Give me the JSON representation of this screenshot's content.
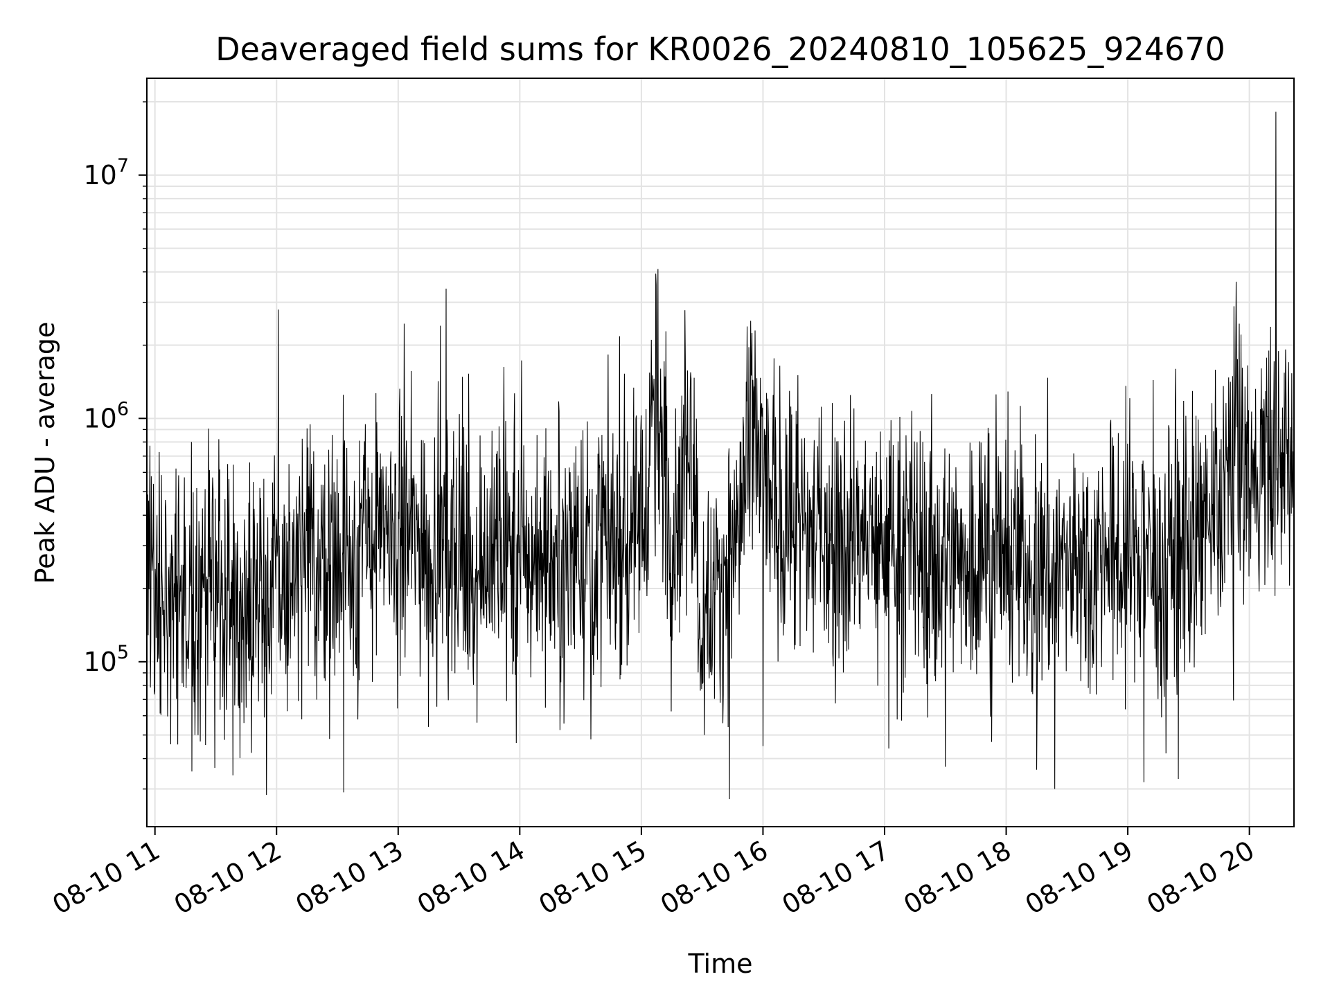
{
  "chart_data": {
    "type": "line",
    "title": "Deaveraged field sums for KR0026_20240810_105625_924670",
    "xlabel": "Time",
    "ylabel": "Peak ADU - average",
    "yscale": "log",
    "ylim": [
      21000,
      25000000
    ],
    "xlim": [
      "2024-08-10 10:56",
      "2024-08-10 20:22"
    ],
    "grid": true,
    "line_color": "#000000",
    "x_ticks": [
      {
        "time": "2024-08-10 11:00",
        "label": "08-10 11"
      },
      {
        "time": "2024-08-10 12:00",
        "label": "08-10 12"
      },
      {
        "time": "2024-08-10 13:00",
        "label": "08-10 13"
      },
      {
        "time": "2024-08-10 14:00",
        "label": "08-10 14"
      },
      {
        "time": "2024-08-10 15:00",
        "label": "08-10 15"
      },
      {
        "time": "2024-08-10 16:00",
        "label": "08-10 16"
      },
      {
        "time": "2024-08-10 17:00",
        "label": "08-10 17"
      },
      {
        "time": "2024-08-10 18:00",
        "label": "08-10 18"
      },
      {
        "time": "2024-08-10 19:00",
        "label": "08-10 19"
      },
      {
        "time": "2024-08-10 20:00",
        "label": "08-10 20"
      }
    ],
    "y_ticks": [
      {
        "value": 100000,
        "base": "10",
        "exp": "5"
      },
      {
        "value": 1000000,
        "base": "10",
        "exp": "6"
      },
      {
        "value": 10000000,
        "base": "10",
        "exp": "7"
      }
    ],
    "series": [
      {
        "x": [
          "2024-08-10 10:56",
          "2024-08-10 11:05",
          "2024-08-10 11:15",
          "2024-08-10 11:25",
          "2024-08-10 11:35",
          "2024-08-10 11:45",
          "2024-08-10 12:00",
          "2024-08-10 12:15",
          "2024-08-10 12:30",
          "2024-08-10 12:45",
          "2024-08-10 13:00",
          "2024-08-10 13:15",
          "2024-08-10 13:30",
          "2024-08-10 13:45",
          "2024-08-10 14:00",
          "2024-08-10 14:15",
          "2024-08-10 14:30",
          "2024-08-10 14:45",
          "2024-08-10 15:00",
          "2024-08-10 15:07",
          "2024-08-10 15:15",
          "2024-08-10 15:24",
          "2024-08-10 15:30",
          "2024-08-10 15:45",
          "2024-08-10 15:56",
          "2024-08-10 16:05",
          "2024-08-10 16:15",
          "2024-08-10 16:30",
          "2024-08-10 16:45",
          "2024-08-10 17:00",
          "2024-08-10 17:15",
          "2024-08-10 17:30",
          "2024-08-10 17:45",
          "2024-08-10 18:00",
          "2024-08-10 18:15",
          "2024-08-10 18:30",
          "2024-08-10 18:45",
          "2024-08-10 19:00",
          "2024-08-10 19:15",
          "2024-08-10 19:30",
          "2024-08-10 19:45",
          "2024-08-10 19:52",
          "2024-08-10 20:00",
          "2024-08-10 20:10",
          "2024-08-10 20:22"
        ],
        "y": [
          200000,
          220000,
          180000,
          190000,
          180000,
          200000,
          210000,
          230000,
          260000,
          300000,
          330000,
          320000,
          280000,
          270000,
          260000,
          280000,
          300000,
          320000,
          400000,
          1200000,
          300000,
          1000000,
          150000,
          280000,
          800000,
          420000,
          360000,
          330000,
          320000,
          300000,
          290000,
          270000,
          280000,
          270000,
          260000,
          250000,
          270000,
          280000,
          280000,
          300000,
          380000,
          900000,
          550000,
          650000,
          600000
        ]
      }
    ],
    "spikes": [
      {
        "x": "2024-08-10 12:01",
        "y": 2800000
      },
      {
        "x": "2024-08-10 13:03",
        "y": 2450000
      },
      {
        "x": "2024-08-10 14:01",
        "y": 1730000
      },
      {
        "x": "2024-08-10 15:12",
        "y": 2280000
      },
      {
        "x": "2024-08-10 15:55",
        "y": 1440000
      },
      {
        "x": "2024-08-10 19:55",
        "y": 2450000
      },
      {
        "x": "2024-08-10 20:13",
        "y": 18200000
      },
      {
        "x": "2024-08-10 12:33",
        "y": 1250000
      },
      {
        "x": "2024-08-10 12:49",
        "y": 1270000
      },
      {
        "x": "2024-08-10 18:59",
        "y": 1360000
      }
    ],
    "dips": [
      {
        "x": "2024-08-10 11:44",
        "y": 56000
      },
      {
        "x": "2024-08-10 13:15",
        "y": 54000
      },
      {
        "x": "2024-08-10 14:35",
        "y": 48000
      },
      {
        "x": "2024-08-10 15:31",
        "y": 50000
      },
      {
        "x": "2024-08-10 16:00",
        "y": 45000
      },
      {
        "x": "2024-08-10 17:02",
        "y": 44000
      },
      {
        "x": "2024-08-10 17:30",
        "y": 37000
      },
      {
        "x": "2024-08-10 18:15",
        "y": 36000
      },
      {
        "x": "2024-08-10 18:24",
        "y": 30000
      },
      {
        "x": "2024-08-10 19:08",
        "y": 32000
      },
      {
        "x": "2024-08-10 19:25",
        "y": 33000
      }
    ]
  }
}
